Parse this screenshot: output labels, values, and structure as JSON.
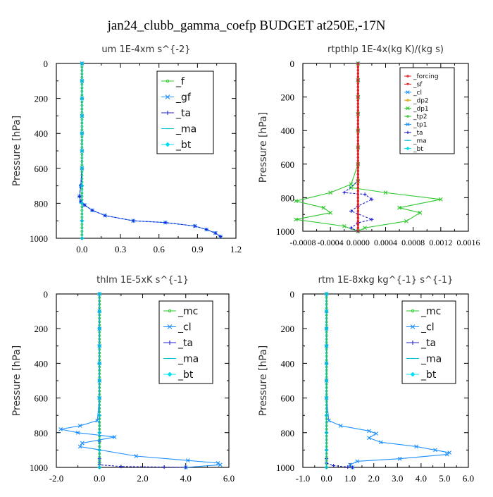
{
  "page": {
    "title": "jan24_clubb_gamma_coefp  BUDGET at250E,-17N"
  },
  "chart_data": [
    {
      "id": "um",
      "type": "line",
      "title": "um   1E-4xm s^{-2}",
      "ylabel": "Pressure [hPa]",
      "xlim": [
        -0.2,
        1.2
      ],
      "ylim": [
        1000,
        0
      ],
      "xticks": [
        0.0,
        0.3,
        0.6,
        0.9,
        1.2
      ],
      "xtick_labels": [
        "0.0",
        "0.3",
        "0.6",
        "0.9",
        "1.2"
      ],
      "yticks": [
        0,
        200,
        400,
        600,
        800,
        1000
      ],
      "ytick_labels": [
        "0",
        "200",
        "400",
        "600",
        "800",
        "1000"
      ],
      "legend": [
        "_f",
        "_gf",
        "_ta",
        "_ma",
        "_bt"
      ],
      "legend_position": "top-right",
      "series": [
        {
          "name": "_f",
          "color": "#2ec82e",
          "marker": "circle",
          "x": [
            0,
            0,
            0,
            0,
            0,
            0,
            0,
            0,
            0,
            0,
            0,
            0,
            0,
            0,
            0,
            0,
            0,
            0,
            0,
            0,
            0,
            0,
            0,
            0,
            0,
            0,
            0,
            0,
            0,
            0,
            0,
            0,
            0,
            0,
            0,
            0,
            0,
            0,
            0,
            0,
            0,
            0,
            0,
            0,
            0,
            0,
            0,
            0,
            0,
            0,
            0
          ],
          "y": [
            0,
            20,
            40,
            60,
            80,
            100,
            120,
            140,
            160,
            180,
            200,
            220,
            240,
            260,
            280,
            300,
            320,
            340,
            360,
            380,
            400,
            420,
            440,
            460,
            480,
            500,
            520,
            540,
            560,
            580,
            600,
            620,
            640,
            660,
            680,
            700,
            720,
            740,
            760,
            780,
            800,
            820,
            840,
            860,
            880,
            900,
            920,
            940,
            960,
            980,
            1000
          ]
        },
        {
          "name": "_gf",
          "color": "#1e90ff",
          "marker": "x",
          "x": [
            0,
            0,
            0,
            0,
            0,
            0,
            0,
            -0.01,
            -0.02,
            -0.01,
            0.02,
            0.08,
            0.18,
            0.4,
            0.65,
            0.88,
            0.97,
            1.04,
            1.08
          ],
          "y": [
            0,
            100,
            200,
            300,
            400,
            500,
            600,
            700,
            760,
            790,
            810,
            840,
            870,
            900,
            910,
            930,
            950,
            970,
            990
          ]
        },
        {
          "name": "_ta",
          "color": "#2020d0",
          "marker": "plus",
          "dashed": true,
          "x": [
            0,
            0,
            0,
            0,
            0,
            0,
            0,
            -0.01,
            -0.02,
            -0.01,
            0.02,
            0.08,
            0.18,
            0.4,
            0.65,
            0.88,
            0.97,
            1.04,
            1.08
          ],
          "y": [
            0,
            100,
            200,
            300,
            400,
            500,
            600,
            700,
            760,
            790,
            810,
            840,
            870,
            900,
            910,
            930,
            950,
            970,
            990
          ]
        },
        {
          "name": "_bt",
          "color": "#00bfd0",
          "marker": "diamond",
          "x": [
            0,
            0,
            0,
            0,
            0,
            0,
            0,
            0,
            0,
            0,
            0
          ],
          "y": [
            0,
            100,
            200,
            300,
            400,
            500,
            600,
            700,
            800,
            900,
            1000
          ]
        }
      ]
    },
    {
      "id": "rtpthlp",
      "type": "line",
      "title": "rtpthlp   1E-4x(kg K)/(kg s)",
      "ylabel": "Pressure [hPa]",
      "xlim": [
        -0.0008,
        0.0016
      ],
      "ylim": [
        1000,
        0
      ],
      "xticks": [
        -0.0008,
        -0.0004,
        0.0,
        0.0004,
        0.0008,
        0.0012,
        0.0016
      ],
      "xtick_labels": [
        "-0.0008",
        "-0.0004",
        "0.0000",
        "0.0004",
        "0.0008",
        "0.0012",
        "0.0016"
      ],
      "yticks": [
        0,
        200,
        400,
        600,
        800,
        1000
      ],
      "ytick_labels": [
        "0",
        "200",
        "400",
        "600",
        "800",
        "1000"
      ],
      "legend": [
        "_forcing",
        "_sf",
        "_cl",
        "_dp2",
        "_dp1",
        "_tp2",
        "_tp1",
        "_ta",
        "_ma",
        "_bt"
      ],
      "legend_position": "top-right",
      "series": [
        {
          "name": "_dp1",
          "color": "#2ec82e",
          "marker": "x",
          "x": [
            0,
            0,
            0,
            0,
            0,
            0,
            0,
            0,
            -0.0001,
            0.0004,
            0.0012,
            0.0006,
            0.0009,
            0.0007,
            0.0001,
            0
          ],
          "y": [
            0,
            100,
            200,
            300,
            400,
            500,
            600,
            700,
            740,
            770,
            810,
            860,
            890,
            940,
            980,
            1000
          ]
        },
        {
          "name": "_tp2",
          "color": "#2ec82e",
          "marker": "x",
          "x": [
            0,
            0,
            0,
            0,
            0,
            0,
            0,
            -0.0001,
            -0.0004,
            -0.0009,
            -0.0005,
            -0.0004,
            -0.0009,
            -0.0002,
            0
          ],
          "y": [
            0,
            100,
            200,
            300,
            400,
            500,
            600,
            720,
            770,
            820,
            860,
            890,
            930,
            970,
            1000
          ]
        },
        {
          "name": "_ta",
          "color": "#2020d0",
          "marker": "plus",
          "dashed": true,
          "x": [
            0,
            0,
            0,
            0,
            0,
            0,
            0,
            0,
            -0.0002,
            0.0001,
            0.0002,
            0,
            -0.0001,
            0.0002,
            0,
            -0.0001,
            0
          ],
          "y": [
            0,
            100,
            200,
            300,
            400,
            500,
            600,
            700,
            770,
            780,
            810,
            850,
            880,
            930,
            950,
            980,
            1000
          ]
        },
        {
          "name": "_forcing",
          "color": "#e02020",
          "marker": "circle",
          "x": [
            0,
            0,
            0,
            0,
            0,
            0,
            0,
            0,
            0,
            0,
            0,
            0,
            0,
            0,
            0,
            0,
            0,
            0,
            0,
            0,
            0,
            0,
            0,
            0,
            0,
            0,
            0,
            0,
            0,
            0,
            0,
            0,
            0,
            0,
            0,
            0,
            0,
            0,
            0,
            0,
            0,
            0,
            0,
            0,
            0,
            0,
            0,
            0,
            0,
            0,
            0
          ],
          "y": [
            0,
            20,
            40,
            60,
            80,
            100,
            120,
            140,
            160,
            180,
            200,
            220,
            240,
            260,
            280,
            300,
            320,
            340,
            360,
            380,
            400,
            420,
            440,
            460,
            480,
            500,
            520,
            540,
            560,
            580,
            600,
            620,
            640,
            660,
            680,
            700,
            720,
            740,
            760,
            780,
            800,
            820,
            840,
            860,
            880,
            900,
            920,
            940,
            960,
            980,
            1000
          ]
        }
      ]
    },
    {
      "id": "thlm",
      "type": "line",
      "title": "thlm   1E-5xK s^{-1}",
      "ylabel": "Pressure [hPa]",
      "xlim": [
        -2.0,
        6.0
      ],
      "ylim": [
        1000,
        0
      ],
      "xticks": [
        -2.0,
        0.0,
        2.0,
        4.0,
        6.0
      ],
      "xtick_labels": [
        "-2.0",
        "0.0",
        "2.0",
        "4.0",
        "6.0"
      ],
      "yticks": [
        0,
        200,
        400,
        600,
        800,
        1000
      ],
      "ytick_labels": [
        "0",
        "200",
        "400",
        "600",
        "800",
        "1000"
      ],
      "legend": [
        "_mc",
        "_cl",
        "_ta",
        "_ma",
        "_bt"
      ],
      "legend_position": "top-right",
      "series": [
        {
          "name": "_mc",
          "color": "#2ec82e",
          "marker": "circle",
          "x": [
            0,
            0,
            0,
            0,
            0,
            0,
            0,
            0,
            0,
            0,
            0,
            0,
            0,
            0,
            0,
            0,
            0,
            0,
            0,
            0,
            0,
            0,
            0,
            0,
            0,
            0,
            0,
            0,
            0,
            0,
            0,
            0,
            0,
            0,
            0,
            0,
            0,
            0,
            0,
            0,
            0,
            0,
            0,
            0,
            0,
            0,
            0,
            0,
            0,
            0,
            0
          ],
          "y": [
            0,
            20,
            40,
            60,
            80,
            100,
            120,
            140,
            160,
            180,
            200,
            220,
            240,
            260,
            280,
            300,
            320,
            340,
            360,
            380,
            400,
            420,
            440,
            460,
            480,
            500,
            520,
            540,
            560,
            580,
            600,
            620,
            640,
            660,
            680,
            700,
            720,
            740,
            760,
            780,
            800,
            820,
            840,
            860,
            880,
            900,
            920,
            940,
            960,
            980,
            1000
          ]
        },
        {
          "name": "_cl",
          "color": "#1e90ff",
          "marker": "x",
          "x": [
            0,
            0,
            0,
            0,
            0,
            0,
            0,
            -0.1,
            -0.9,
            -1.8,
            -1.0,
            0.7,
            -0.8,
            -0.9,
            1.7,
            4.1,
            5.5,
            5.6,
            4.0
          ],
          "y": [
            0,
            100,
            200,
            300,
            400,
            500,
            600,
            730,
            760,
            780,
            800,
            825,
            860,
            880,
            935,
            960,
            975,
            985,
            1000
          ]
        },
        {
          "name": "_ta",
          "color": "#2020d0",
          "marker": "plus",
          "dashed": true,
          "x": [
            0,
            0,
            0,
            0,
            0,
            0,
            0,
            0,
            0,
            0,
            0,
            0,
            0,
            0,
            1.0,
            3.0,
            4.0
          ],
          "y": [
            0,
            100,
            200,
            300,
            400,
            500,
            600,
            700,
            800,
            850,
            900,
            950,
            970,
            985,
            995,
            998,
            1000
          ]
        },
        {
          "name": "_bt",
          "color": "#00bfd0",
          "marker": "diamond",
          "x": [
            0,
            0,
            0,
            0,
            0,
            0,
            0,
            0,
            0,
            0,
            0
          ],
          "y": [
            0,
            100,
            200,
            300,
            400,
            500,
            600,
            700,
            800,
            900,
            1000
          ]
        }
      ]
    },
    {
      "id": "rtm",
      "type": "line",
      "title": "rtm   1E-8xkg kg^{-1} s^{-1}",
      "ylabel": "Pressure [hPa]",
      "xlim": [
        -1.0,
        6.0
      ],
      "ylim": [
        1000,
        0
      ],
      "xticks": [
        -1.0,
        0.0,
        1.0,
        2.0,
        3.0,
        4.0,
        5.0,
        6.0
      ],
      "xtick_labels": [
        "-1.0",
        "0.0",
        "1.0",
        "2.0",
        "3.0",
        "4.0",
        "5.0",
        "6.0"
      ],
      "yticks": [
        0,
        200,
        400,
        600,
        800,
        1000
      ],
      "ytick_labels": [
        "0",
        "200",
        "400",
        "600",
        "800",
        "1000"
      ],
      "legend": [
        "_mc",
        "_cl",
        "_ta",
        "_ma",
        "_bt"
      ],
      "legend_position": "top-right",
      "series": [
        {
          "name": "_mc",
          "color": "#2ec82e",
          "marker": "circle",
          "x": [
            0,
            0,
            0,
            0,
            0,
            0,
            0,
            0,
            0,
            0,
            0,
            0,
            0,
            0,
            0,
            0,
            0,
            0,
            0,
            0,
            0,
            0,
            0,
            0,
            0,
            0,
            0,
            0,
            0,
            0,
            0,
            0,
            0,
            0,
            0,
            0,
            0,
            0,
            0,
            0,
            0,
            0,
            0,
            0,
            0,
            0,
            0,
            0,
            0,
            0,
            0
          ],
          "y": [
            0,
            20,
            40,
            60,
            80,
            100,
            120,
            140,
            160,
            180,
            200,
            220,
            240,
            260,
            280,
            300,
            320,
            340,
            360,
            380,
            400,
            420,
            440,
            460,
            480,
            500,
            520,
            540,
            560,
            580,
            600,
            620,
            640,
            660,
            680,
            700,
            720,
            740,
            760,
            780,
            800,
            820,
            840,
            860,
            880,
            900,
            920,
            940,
            960,
            980,
            1000
          ]
        },
        {
          "name": "_cl",
          "color": "#1e90ff",
          "marker": "x",
          "x": [
            0,
            0,
            0,
            0,
            0,
            0,
            0,
            0.1,
            0.6,
            1.8,
            2.1,
            1.8,
            2.3,
            3.8,
            4.6,
            5.2,
            5.1,
            3.1,
            1.3,
            1.0,
            1.1
          ],
          "y": [
            0,
            100,
            200,
            300,
            400,
            500,
            600,
            730,
            760,
            790,
            805,
            830,
            855,
            880,
            900,
            915,
            925,
            950,
            965,
            985,
            1000
          ]
        },
        {
          "name": "_ta",
          "color": "#2020d0",
          "marker": "plus",
          "dashed": true,
          "x": [
            0,
            0,
            0,
            0,
            0,
            0,
            0,
            0,
            0,
            0,
            0,
            0,
            0.3,
            0.9,
            1.1
          ],
          "y": [
            0,
            100,
            200,
            300,
            400,
            500,
            600,
            700,
            800,
            900,
            950,
            975,
            990,
            998,
            1000
          ]
        },
        {
          "name": "_bt",
          "color": "#00bfd0",
          "marker": "diamond",
          "x": [
            0,
            0,
            0,
            0,
            0,
            0,
            0,
            0,
            0,
            0,
            0
          ],
          "y": [
            0,
            100,
            200,
            300,
            400,
            500,
            600,
            700,
            800,
            900,
            1000
          ]
        }
      ]
    }
  ]
}
